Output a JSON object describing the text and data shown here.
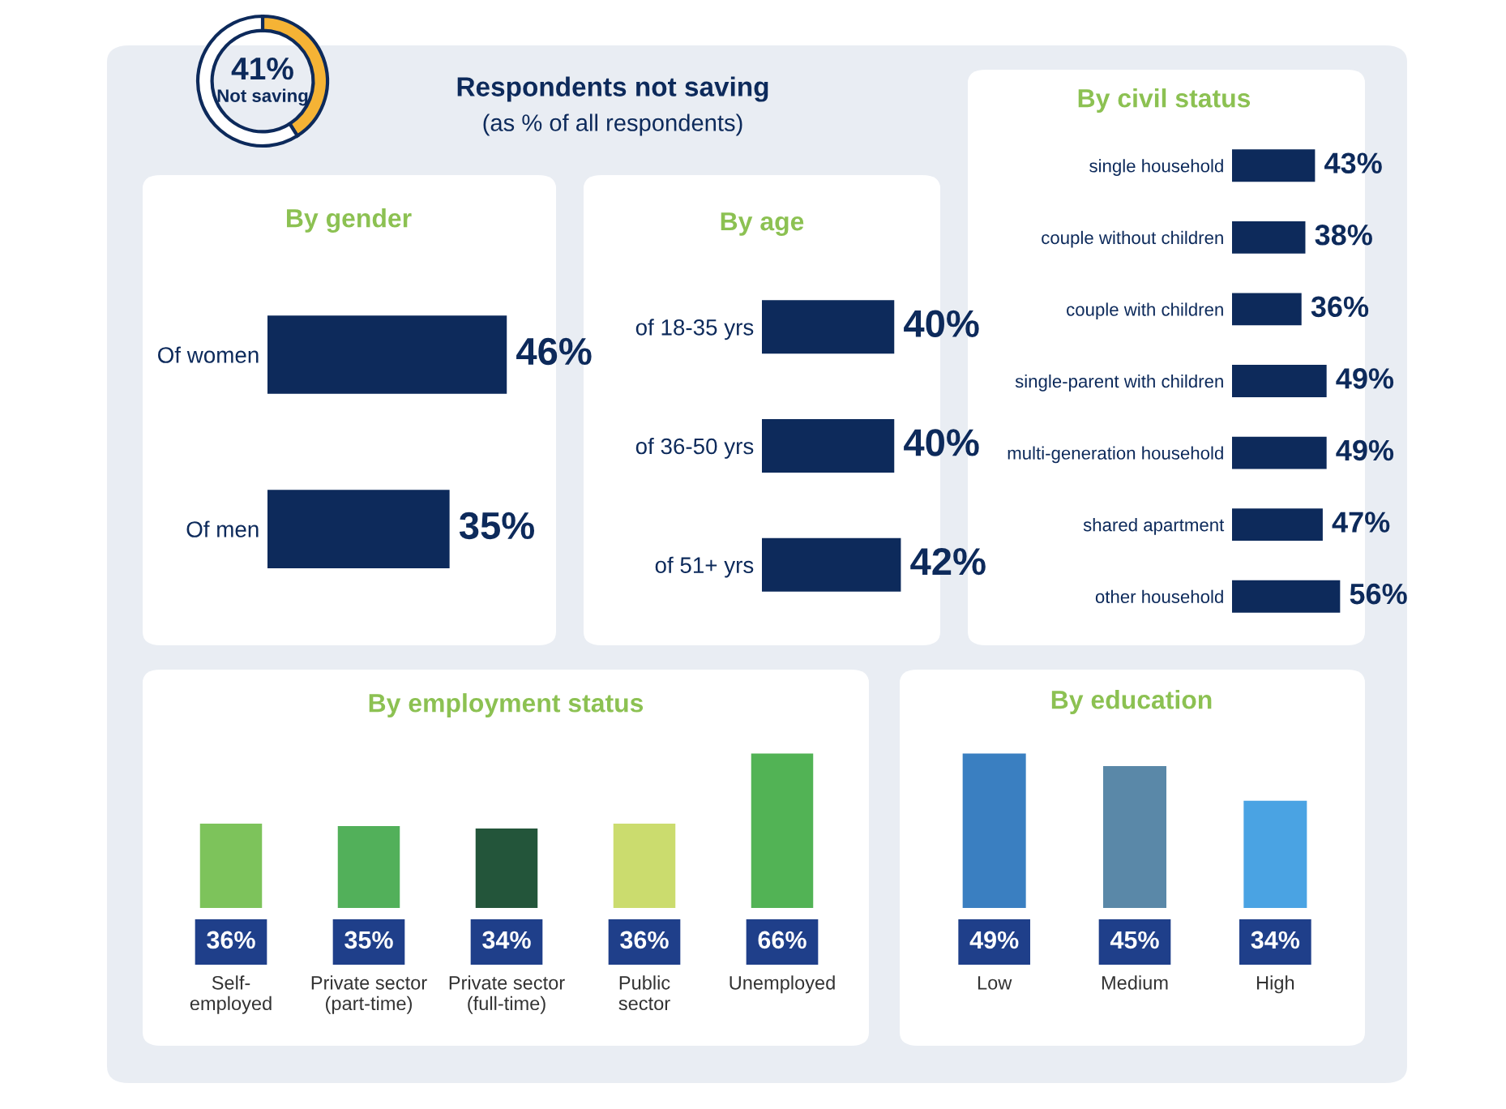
{
  "chart_data": [
    {
      "type": "donut",
      "title": "Respondents not saving",
      "subtitle": "(as % of all respondents)",
      "categories": [
        "Not saving",
        null
      ],
      "values": [
        41,
        59
      ],
      "colors": [
        "#f5b335",
        "#ffffff"
      ],
      "value_labels": [
        "41%",
        null
      ]
    },
    {
      "type": "bar",
      "orientation": "horizontal",
      "title": "By gender",
      "categories": [
        "Of women",
        "Of men"
      ],
      "values": [
        46,
        35
      ],
      "color": "#0d2a5b",
      "value_labels": [
        "46%",
        "35%"
      ],
      "tick_labels": "y"
    },
    {
      "type": "bar",
      "orientation": "horizontal",
      "title": "By age",
      "categories": [
        "of 18-35 yrs",
        "of 36-50 yrs",
        "of 51+ yrs"
      ],
      "values": [
        40,
        40,
        42
      ],
      "color": "#0d2a5b",
      "value_labels": [
        "40%",
        "40%",
        "42%"
      ],
      "tick_labels": "y"
    },
    {
      "type": "bar",
      "orientation": "horizontal",
      "title": "By civil status",
      "categories": [
        "single household",
        "couple without children",
        "couple with children",
        "single-parent with children",
        "multi-generation household",
        "shared apartment",
        "other household"
      ],
      "values": [
        43,
        38,
        36,
        49,
        49,
        47,
        56
      ],
      "color": "#0d2a5b",
      "value_labels": [
        "43%",
        "38%",
        "36%",
        "49%",
        "49%",
        "47%",
        "56%"
      ],
      "tick_labels": "y"
    },
    {
      "type": "bar",
      "title": "By employment status",
      "categories": [
        "Self-\nemployed",
        "Private sector\n(part-time)",
        "Private sector\n(full-time)",
        "Public\nsector",
        "Unemployed"
      ],
      "values": [
        36,
        35,
        34,
        36,
        66
      ],
      "colors": [
        "#7dc35b",
        "#52b05a",
        "#23553a",
        "#cbdc6e",
        "#52b355"
      ],
      "value_labels": [
        "36%",
        "35%",
        "34%",
        "36%",
        "66%"
      ],
      "tick_labels": "x"
    },
    {
      "type": "bar",
      "title": "By education",
      "categories": [
        "Low",
        "Medium",
        "High"
      ],
      "values": [
        49,
        45,
        34
      ],
      "colors": [
        "#3a7fc1",
        "#5a88a8",
        "#4aa3e3"
      ],
      "value_labels": [
        "49%",
        "45%",
        "34%"
      ],
      "tick_labels": "x"
    }
  ]
}
